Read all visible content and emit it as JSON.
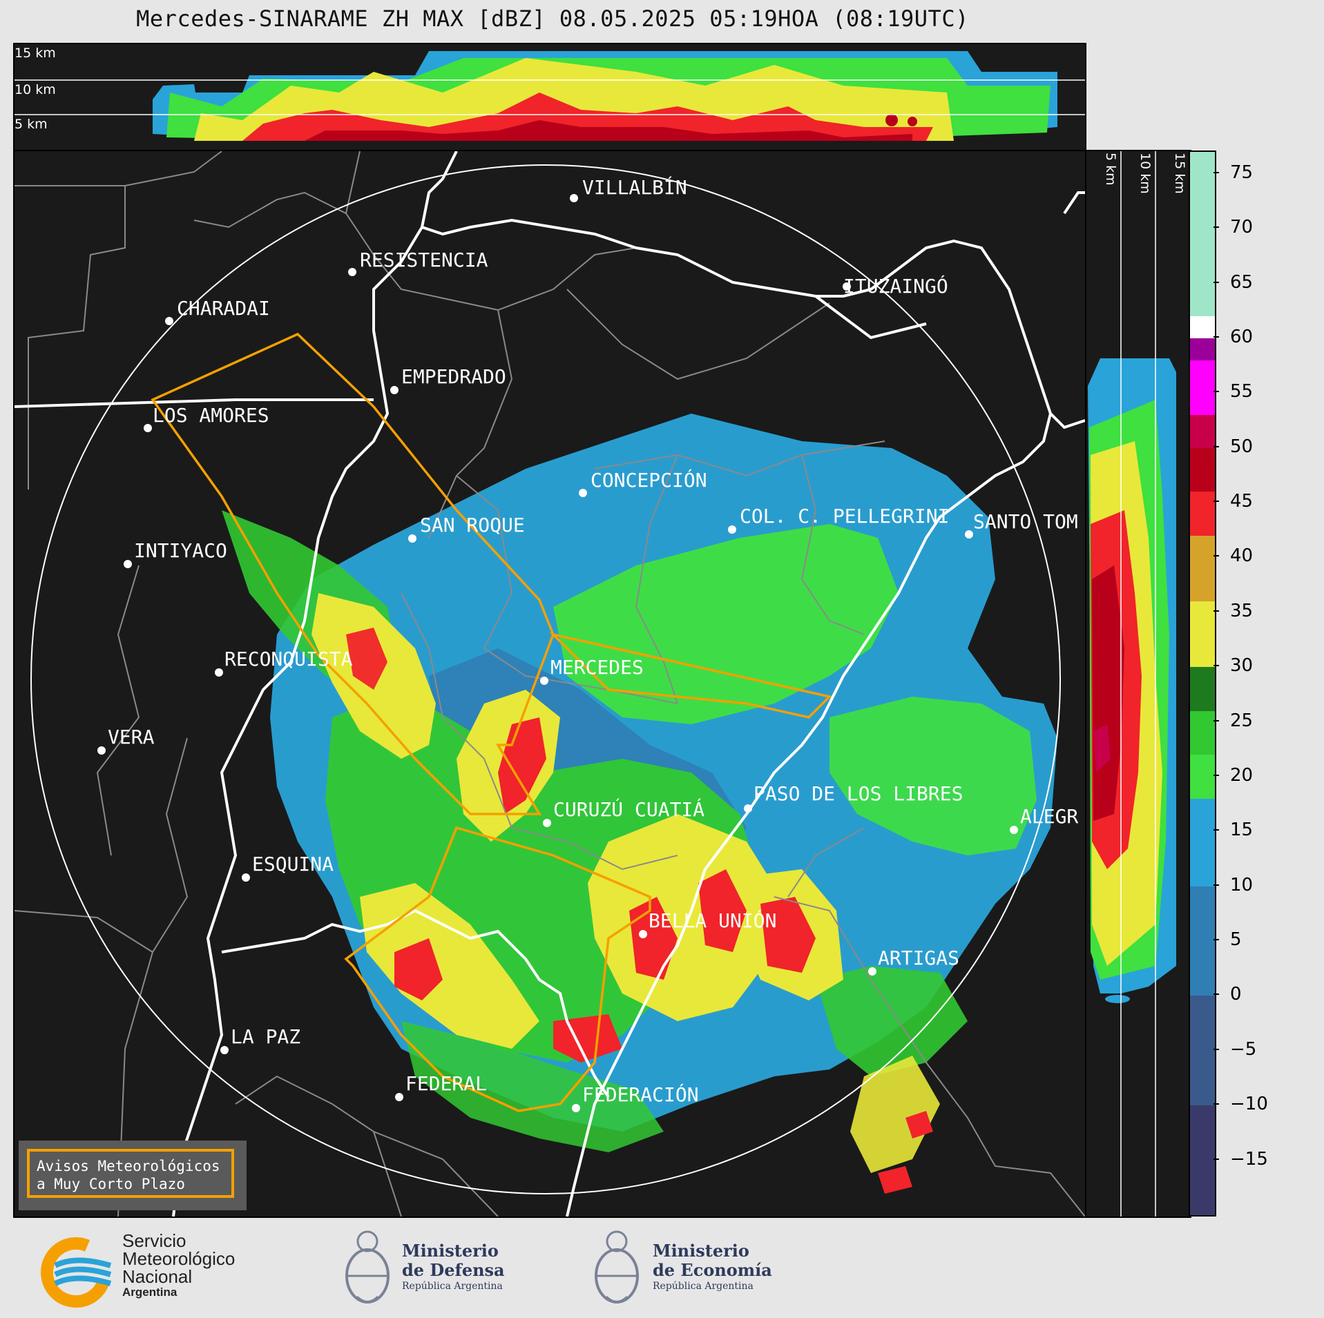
{
  "title": "Mercedes-SINARAME ZH MAX [dBZ] 08.05.2025 05:19HOA (08:19UTC)",
  "height_labels": [
    "15 km",
    "10 km",
    "5 km"
  ],
  "side_height_labels": [
    "5 km",
    "10 km",
    "15 km"
  ],
  "colorbar": {
    "label_values": [
      75,
      70,
      65,
      60,
      55,
      50,
      45,
      40,
      35,
      30,
      25,
      20,
      15,
      10,
      5,
      0,
      -5,
      -10,
      -15
    ],
    "label_texts": [
      "75",
      "70",
      "65",
      "60",
      "55",
      "50",
      "45",
      "40",
      "35",
      "30",
      "25",
      "20",
      "15",
      "10",
      "5",
      "0",
      "−5",
      "−10",
      "−15"
    ],
    "range": [
      -20,
      77
    ],
    "stops": [
      {
        "from": -20,
        "to": -10,
        "color": "#3a3a6a"
      },
      {
        "from": -10,
        "to": 0,
        "color": "#3a5a8c"
      },
      {
        "from": 0,
        "to": 10,
        "color": "#2f7fb5"
      },
      {
        "from": 10,
        "to": 18,
        "color": "#2aa3d8"
      },
      {
        "from": 18,
        "to": 22,
        "color": "#3fe03f"
      },
      {
        "from": 22,
        "to": 26,
        "color": "#32c832"
      },
      {
        "from": 26,
        "to": 30,
        "color": "#1e7a1e"
      },
      {
        "from": 30,
        "to": 36,
        "color": "#e8e83a"
      },
      {
        "from": 36,
        "to": 42,
        "color": "#d6a32a"
      },
      {
        "from": 42,
        "to": 46,
        "color": "#f0242a"
      },
      {
        "from": 46,
        "to": 50,
        "color": "#b8001a"
      },
      {
        "from": 50,
        "to": 53,
        "color": "#c8004a"
      },
      {
        "from": 53,
        "to": 58,
        "color": "#ff00ff"
      },
      {
        "from": 58,
        "to": 60,
        "color": "#9a0099"
      },
      {
        "from": 60,
        "to": 62,
        "color": "#ffffff"
      },
      {
        "from": 62,
        "to": 77,
        "color": "#9fe6c8"
      }
    ]
  },
  "cities": [
    {
      "name": "VILLALBÍN"
    },
    {
      "name": "RESISTENCIA"
    },
    {
      "name": "CHARADAI"
    },
    {
      "name": "ITUZAINGÓ"
    },
    {
      "name": "EMPEDRADO"
    },
    {
      "name": "LOS AMORES"
    },
    {
      "name": "CONCEPCIÓN"
    },
    {
      "name": "SAN ROQUE"
    },
    {
      "name": "COL. C. PELLEGRINI"
    },
    {
      "name": "SANTO TOM"
    },
    {
      "name": "INTIYACO"
    },
    {
      "name": "MERCEDES"
    },
    {
      "name": "RECONQUISTA"
    },
    {
      "name": "VERA"
    },
    {
      "name": "PASO DE LOS LIBRES"
    },
    {
      "name": "CURUZÚ CUATIÁ"
    },
    {
      "name": "ALEGR"
    },
    {
      "name": "ESQUINA"
    },
    {
      "name": "BELLA UNIÓN"
    },
    {
      "name": "ARTIGAS"
    },
    {
      "name": "LA PAZ"
    },
    {
      "name": "FEDERAL"
    },
    {
      "name": "FEDERACIÓN"
    }
  ],
  "notice": {
    "line1": "Avisos Meteorológicos",
    "line2": "a Muy Corto Plazo"
  },
  "footer": {
    "smn": {
      "line1": "Servicio",
      "line2": "Meteorológico",
      "line3": "Nacional",
      "line4": "Argentina"
    },
    "defensa": {
      "line1": "Ministerio",
      "line2": "de Defensa",
      "line3": "República Argentina"
    },
    "economia": {
      "line1": "Ministerio",
      "line2": "de Economía",
      "line3": "República Argentina"
    }
  },
  "colors": {
    "background": "#e6e6e6",
    "panel": "#1a1a1a",
    "warning_outline": "#f5a000",
    "notice_bg": "#5a5a5a",
    "smn_blue": "#2aa3d8",
    "smn_orange": "#f5a000"
  }
}
